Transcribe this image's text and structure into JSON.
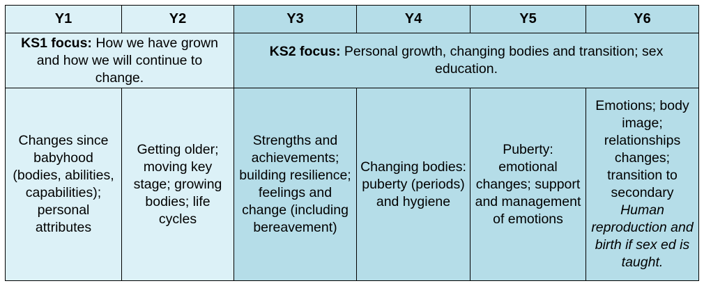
{
  "years": [
    "Y1",
    "Y2",
    "Y3",
    "Y4",
    "Y5",
    "Y6"
  ],
  "ks1_focus": {
    "label": "KS1 focus:",
    "text": " How we have grown and how we will continue to change."
  },
  "ks2_focus": {
    "label": "KS2 focus:",
    "text": " Personal growth, changing bodies and transition; sex education."
  },
  "topics": {
    "y1": "Changes since babyhood (bodies, abilities, capabilities); personal attributes",
    "y2": "Getting older; moving key stage; growing bodies; life cycles",
    "y3": "Strengths and achievements; building resilience; feelings and change (including bereavement)",
    "y4": "Changing bodies: puberty (periods) and hygiene",
    "y5": "Puberty: emotional changes; support and management of emotions",
    "y6": "Emotions; body image; relationships changes; transition to secondary",
    "y6_italic": "Human reproduction and birth if sex ed is taught."
  },
  "colors": {
    "ks1_fill": "#dcf1f7",
    "ks2_fill": "#b5dde8",
    "border": "#000000"
  }
}
